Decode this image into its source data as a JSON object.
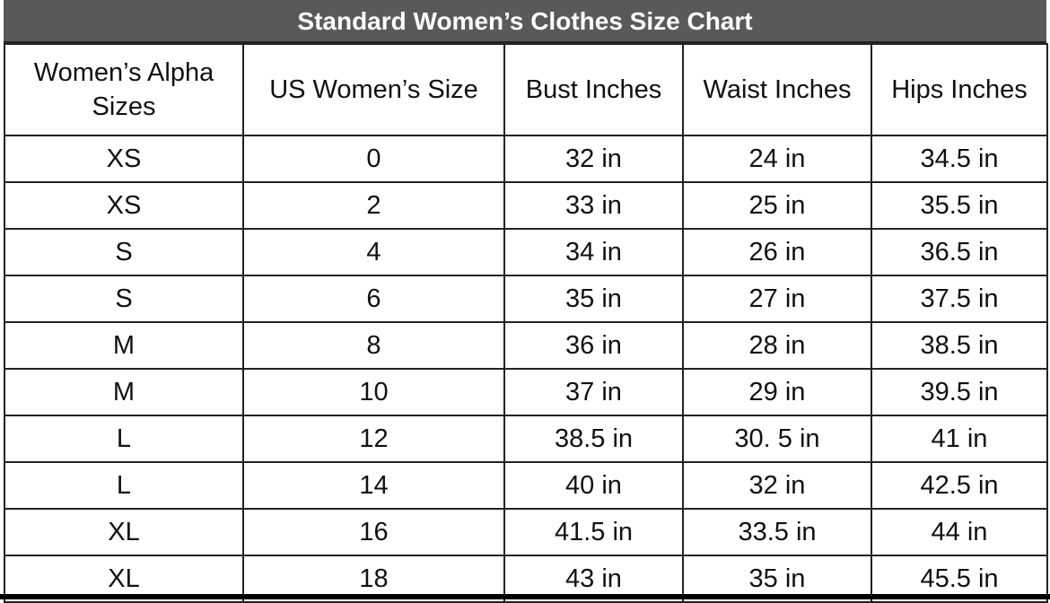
{
  "title": "Standard Women’s Clothes Size Chart",
  "columns": [
    "Women’s Alpha Sizes",
    "US Women’s Size",
    "Bust Inches",
    "Waist Inches",
    "Hips Inches"
  ],
  "rows": [
    [
      "XS",
      "0",
      "32 in",
      "24 in",
      "34.5 in"
    ],
    [
      "XS",
      "2",
      "33 in",
      "25 in",
      "35.5 in"
    ],
    [
      "S",
      "4",
      "34 in",
      "26 in",
      "36.5 in"
    ],
    [
      "S",
      "6",
      "35 in",
      "27 in",
      "37.5 in"
    ],
    [
      "M",
      "8",
      "36 in",
      "28 in",
      "38.5 in"
    ],
    [
      "M",
      "10",
      "37 in",
      "29 in",
      "39.5 in"
    ],
    [
      "L",
      "12",
      "38.5 in",
      "30. 5 in",
      "41 in"
    ],
    [
      "L",
      "14",
      "40 in",
      "32 in",
      "42.5 in"
    ],
    [
      "XL",
      "16",
      "41.5 in",
      "33.5 in",
      "44 in"
    ],
    [
      "XL",
      "18",
      "43 in",
      "35 in",
      "45.5 in"
    ]
  ],
  "colors": {
    "title_bg": "#595959",
    "title_text": "#ffffff",
    "border": "#222222"
  }
}
